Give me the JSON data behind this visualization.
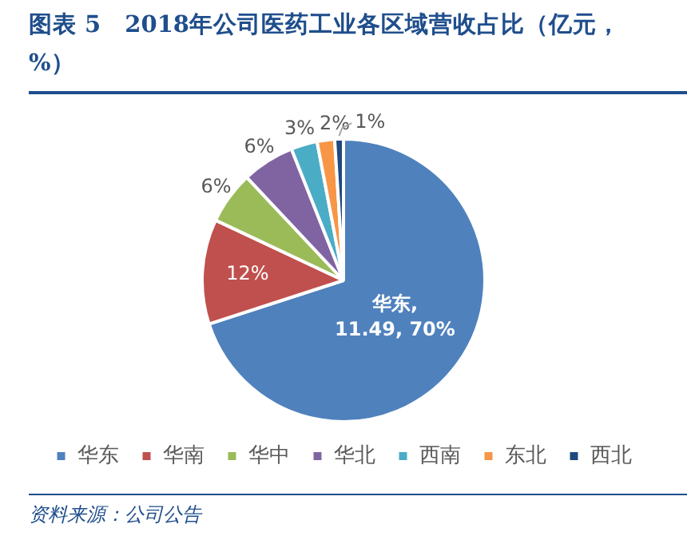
{
  "chart_data": {
    "type": "pie",
    "title": "图表 5　2018年公司医药工业各区域营收占比（亿元，%）",
    "categories": [
      "华东",
      "华南",
      "华中",
      "华北",
      "西南",
      "东北",
      "西北"
    ],
    "values": [
      70,
      12,
      6,
      6,
      3,
      2,
      1
    ],
    "value_labels": [
      "华东,\n11.49, 70%",
      "12%",
      "6%",
      "6%",
      "3%",
      "2%",
      "1%"
    ],
    "colors": [
      "#4f81bd",
      "#c0504d",
      "#9bbb59",
      "#8064a2",
      "#4bacc6",
      "#f79646",
      "#1f497d"
    ],
    "legend": "bottom",
    "annotations": [
      "资料来源：公司公告"
    ]
  }
}
